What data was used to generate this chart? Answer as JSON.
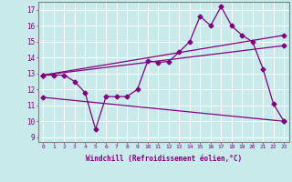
{
  "bg_color": "#c8eaea",
  "line_color": "#800080",
  "grid_color": "#ffffff",
  "xlabel": "Windchill (Refroidissement éolien,°C)",
  "ylabel_ticks": [
    9,
    10,
    11,
    12,
    13,
    14,
    15,
    16,
    17
  ],
  "xlim": [
    -0.5,
    23.5
  ],
  "ylim": [
    8.7,
    17.5
  ],
  "xticks": [
    0,
    1,
    2,
    3,
    4,
    5,
    6,
    7,
    8,
    9,
    10,
    11,
    12,
    13,
    14,
    15,
    16,
    17,
    18,
    19,
    20,
    21,
    22,
    23
  ],
  "series1_x": [
    0,
    1,
    2,
    3,
    4,
    5,
    6,
    7,
    8,
    9,
    10,
    11,
    12,
    13,
    14,
    15,
    16,
    17,
    18,
    19,
    20,
    21,
    22,
    23
  ],
  "series1_y": [
    12.9,
    12.9,
    12.9,
    12.5,
    11.8,
    9.5,
    11.55,
    11.55,
    11.55,
    12.0,
    13.8,
    13.7,
    13.75,
    14.35,
    15.0,
    16.6,
    16.0,
    17.2,
    16.0,
    15.4,
    15.0,
    13.3,
    11.1,
    10.0
  ],
  "series2_x": [
    0,
    23
  ],
  "series2_y": [
    12.9,
    15.4
  ],
  "series3_x": [
    0,
    23
  ],
  "series3_y": [
    12.9,
    14.75
  ],
  "series4_x": [
    0,
    23
  ],
  "series4_y": [
    11.5,
    10.0
  ]
}
